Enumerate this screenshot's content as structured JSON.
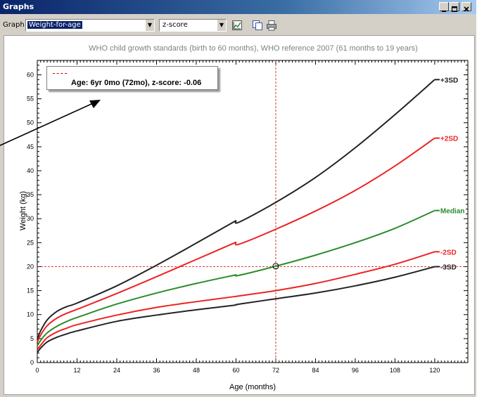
{
  "window": {
    "title": "Graphs"
  },
  "toolbar": {
    "graph_label": "Graph",
    "graph_select": "Weight-for-age",
    "score_select": "z-score",
    "icons": [
      "chart-settings-icon",
      "copy-icon",
      "print-icon"
    ]
  },
  "chart_subtitle": "WHO child growth standards (birth to 60 months), WHO reference 2007 (61 months to 19 years)",
  "annotation": {
    "text": "Age: 6yr 0mo (72mo), z-score: -0.06",
    "legend_line_color": "#d00000"
  },
  "chart_data": {
    "type": "line",
    "xlabel": "Age (months)",
    "ylabel": "Weight (kg)",
    "xlim": [
      0,
      130
    ],
    "ylim": [
      0,
      63
    ],
    "xticks": [
      0,
      12,
      24,
      36,
      48,
      60,
      72,
      84,
      96,
      108,
      120
    ],
    "yticks": [
      0,
      5,
      10,
      15,
      20,
      25,
      30,
      35,
      40,
      45,
      50,
      55,
      60
    ],
    "series": [
      {
        "name": "+3SD",
        "color": "#222222",
        "x": [
          0,
          1,
          3,
          6,
          9,
          12,
          24,
          36,
          48,
          60,
          61,
          72,
          84,
          96,
          108,
          120
        ],
        "y": [
          4.8,
          6.6,
          8.9,
          10.7,
          11.7,
          12.4,
          16,
          20.3,
          24.9,
          29.6,
          29.3,
          33.4,
          38.6,
          44.8,
          51.7,
          59
        ]
      },
      {
        "name": "+2SD",
        "color": "#ee2222",
        "x": [
          0,
          1,
          3,
          6,
          9,
          12,
          24,
          36,
          48,
          60,
          61,
          72,
          84,
          96,
          108,
          120
        ],
        "y": [
          4.2,
          5.7,
          7.7,
          9.3,
          10.3,
          11.1,
          14.4,
          17.9,
          21.5,
          25.1,
          24.7,
          27.8,
          31.6,
          35.9,
          41,
          46.8
        ]
      },
      {
        "name": "Median",
        "color": "#2a8c2a",
        "x": [
          0,
          1,
          3,
          6,
          9,
          12,
          24,
          36,
          48,
          60,
          61,
          72,
          84,
          96,
          108,
          120
        ],
        "y": [
          3.5,
          4.6,
          6.2,
          7.6,
          8.6,
          9.4,
          12.2,
          14.5,
          16.5,
          18.3,
          18.2,
          20.1,
          22.4,
          25,
          28,
          31.7
        ]
      },
      {
        "name": "-2SD",
        "color": "#ee2222",
        "x": [
          0,
          1,
          3,
          6,
          9,
          12,
          24,
          36,
          48,
          60,
          61,
          72,
          84,
          96,
          108,
          120
        ],
        "y": [
          2.7,
          3.6,
          5.2,
          6.4,
          7.2,
          7.9,
          9.9,
          11.5,
          12.7,
          13.8,
          13.9,
          15,
          16.5,
          18.4,
          20.5,
          23.1
        ]
      },
      {
        "name": "-3SD",
        "color": "#222222",
        "x": [
          0,
          1,
          3,
          6,
          9,
          12,
          24,
          36,
          48,
          60,
          61,
          72,
          84,
          96,
          108,
          120
        ],
        "y": [
          2.1,
          3,
          4.3,
          5.3,
          6,
          6.6,
          8.6,
          9.9,
          11,
          12,
          12.2,
          13.3,
          14.5,
          16,
          17.8,
          20
        ]
      }
    ],
    "crosshair": {
      "x": 72,
      "y": 20,
      "color": "#d00000"
    },
    "point": {
      "x": 72,
      "y": 20.1
    }
  }
}
